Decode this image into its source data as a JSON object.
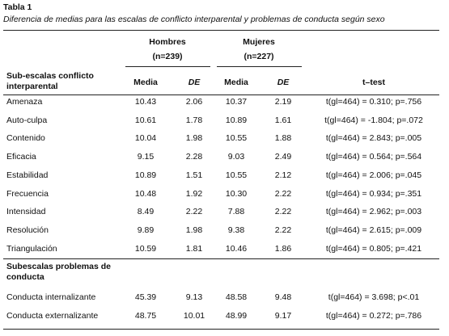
{
  "header": {
    "title": "Tabla 1",
    "caption": "Diferencia de medias para las escalas de conflicto interparental y problemas de conducta según sexo"
  },
  "table": {
    "groups": [
      {
        "name": "Hombres",
        "n": "(n=239)"
      },
      {
        "name": "Mujeres",
        "n": "(n=227)"
      }
    ],
    "columns": [
      "Media",
      "DE",
      "Media",
      "DE",
      "t–test"
    ],
    "sections": [
      {
        "title": "Sub-escalas conflicto interparental",
        "rows": [
          [
            "Amenaza",
            "10.43",
            "2.06",
            "10.37",
            "2.19",
            "t(gl=464) = 0.310; p=.756"
          ],
          [
            "Auto-culpa",
            "10.61",
            "1.78",
            "10.89",
            "1.61",
            "t(gl=464) = -1.804; p=.072"
          ],
          [
            "Contenido",
            "10.04",
            "1.98",
            "10.55",
            "1.88",
            "t(gl=464) = 2.843; p=.005"
          ],
          [
            "Eficacia",
            "9.15",
            "2.28",
            "9.03",
            "2.49",
            "t(gl=464) = 0.564; p=.564"
          ],
          [
            "Estabilidad",
            "10.89",
            "1.51",
            "10.55",
            "2.12",
            "t(gl=464) = 2.006; p=.045"
          ],
          [
            "Frecuencia",
            "10.48",
            "1.92",
            "10.30",
            "2.22",
            "t(gl=464) = 0.934; p=.351"
          ],
          [
            "Intensidad",
            "8.49",
            "2.22",
            "7.88",
            "2.22",
            "t(gl=464) = 2.962; p=.003"
          ],
          [
            "Resolución",
            "9.89",
            "1.98",
            "9.38",
            "2.22",
            "t(gl=464) = 2.615; p=.009"
          ],
          [
            "Triangulación",
            "10.59",
            "1.81",
            "10.46",
            "1.86",
            "t(gl=464) = 0.805; p=.421"
          ]
        ]
      },
      {
        "title": "Subescalas problemas de conducta",
        "rows": [
          [
            "Conducta internalizante",
            "45.39",
            "9.13",
            "48.58",
            "9.48",
            "t(gl=464) = 3.698; p<.01"
          ],
          [
            "Conducta externalizante",
            "48.75",
            "10.01",
            "48.99",
            "9.17",
            "t(gl=464) = 0.272; p=.786"
          ]
        ]
      }
    ]
  }
}
